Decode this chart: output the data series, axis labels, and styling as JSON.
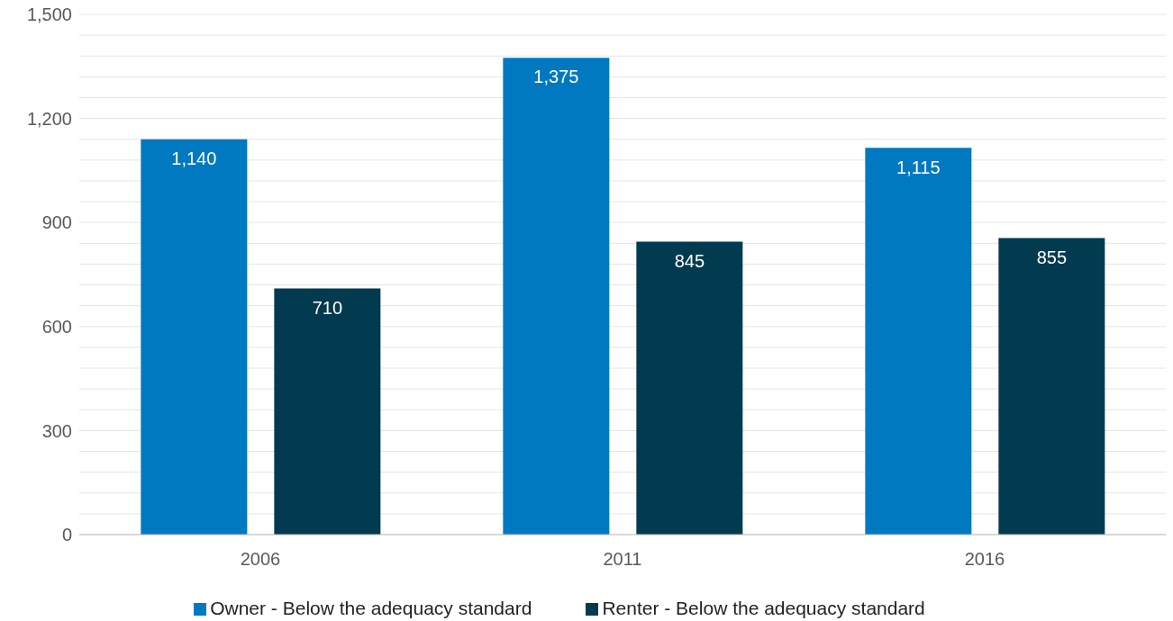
{
  "chart_data": {
    "type": "bar",
    "categories": [
      "2006",
      "2011",
      "2016"
    ],
    "series": [
      {
        "name": "Owner - Below the adequacy standard",
        "color": "#0079c1",
        "values": [
          1140,
          1375,
          1115
        ],
        "value_labels": [
          "1,140",
          "1,375",
          "1,115"
        ]
      },
      {
        "name": "Renter - Below the adequacy standard",
        "color": "#023a4f",
        "values": [
          710,
          845,
          855
        ],
        "value_labels": [
          "710",
          "845",
          "855"
        ]
      }
    ],
    "ylim": [
      0,
      1500
    ],
    "yticks": [
      0,
      {
        "value": 60,
        "label": null
      },
      {
        "value": 120,
        "label": null
      },
      {
        "value": 180,
        "label": null
      },
      {
        "value": 240,
        "label": null
      },
      300,
      {
        "value": 360,
        "label": null
      },
      {
        "value": 420,
        "label": null
      },
      {
        "value": 480,
        "label": null
      },
      {
        "value": 540,
        "label": null
      },
      600,
      {
        "value": 660,
        "label": null
      },
      {
        "value": 720,
        "label": null
      },
      {
        "value": 780,
        "label": null
      },
      {
        "value": 840,
        "label": null
      },
      900,
      {
        "value": 960,
        "label": null
      },
      {
        "value": 1020,
        "label": null
      },
      {
        "value": 1080,
        "label": null
      },
      {
        "value": 1140,
        "label": null
      },
      {
        "value": 1200,
        "label": "1,200"
      },
      {
        "value": 1260,
        "label": null
      },
      {
        "value": 1320,
        "label": null
      },
      {
        "value": 1380,
        "label": null
      },
      {
        "value": 1440,
        "label": null
      },
      {
        "value": 1500,
        "label": "1,500"
      }
    ],
    "grid": "y",
    "legend": "bottom"
  }
}
